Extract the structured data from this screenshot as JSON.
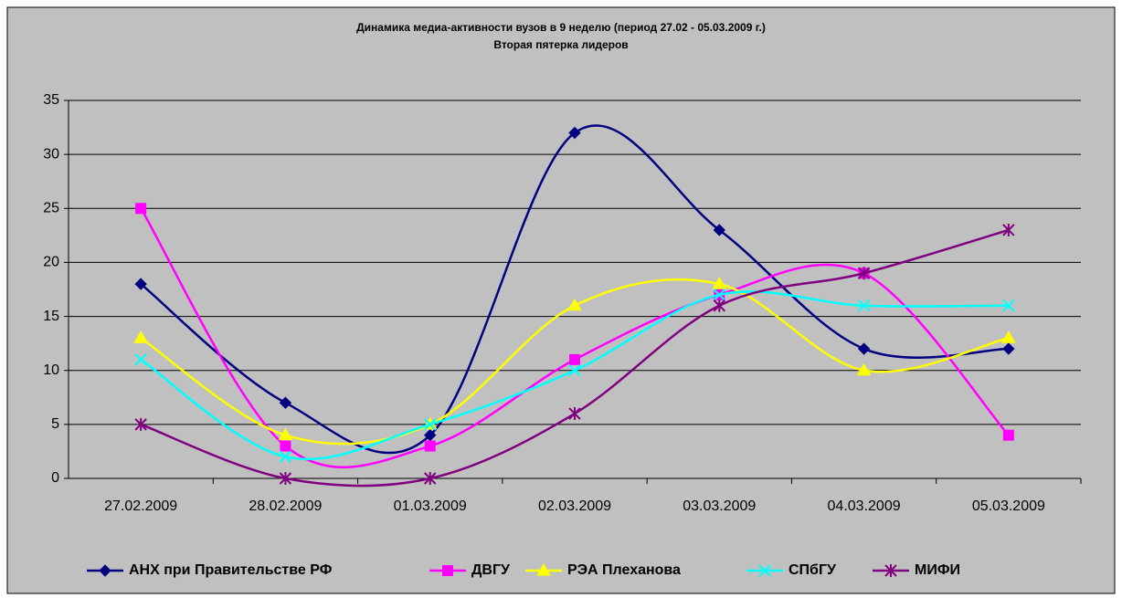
{
  "chart_data": {
    "type": "line",
    "title": "Динамика медиа-активности вузов в 9 неделю (период 27.02 - 05.03.2009 г.)",
    "subtitle": "Вторая пятерка лидеров",
    "categories": [
      "27.02.2009",
      "28.02.2009",
      "01.03.2009",
      "02.03.2009",
      "03.03.2009",
      "04.03.2009",
      "05.03.2009"
    ],
    "series": [
      {
        "name": "АНХ при Правительстве РФ",
        "color": "#000080",
        "marker": "diamond",
        "values": [
          18,
          7,
          4,
          32,
          23,
          12,
          12
        ]
      },
      {
        "name": "ДВГУ",
        "color": "#ff00ff",
        "marker": "square",
        "values": [
          25,
          3,
          3,
          11,
          17,
          19,
          4
        ]
      },
      {
        "name": "РЭА Плеханова",
        "color": "#ffff00",
        "marker": "triangle",
        "values": [
          13,
          4,
          5,
          16,
          18,
          10,
          13
        ]
      },
      {
        "name": "СПбГУ",
        "color": "#00ffff",
        "marker": "x",
        "values": [
          11,
          2,
          5,
          10,
          17,
          16,
          16
        ]
      },
      {
        "name": "МИФИ",
        "color": "#800080",
        "marker": "star",
        "values": [
          5,
          0,
          0,
          6,
          16,
          19,
          23
        ]
      }
    ],
    "ylim": [
      0,
      35
    ],
    "yticks": [
      0,
      5,
      10,
      15,
      20,
      25,
      30,
      35
    ],
    "grid": true,
    "smooth": true,
    "legend": "bottom"
  }
}
